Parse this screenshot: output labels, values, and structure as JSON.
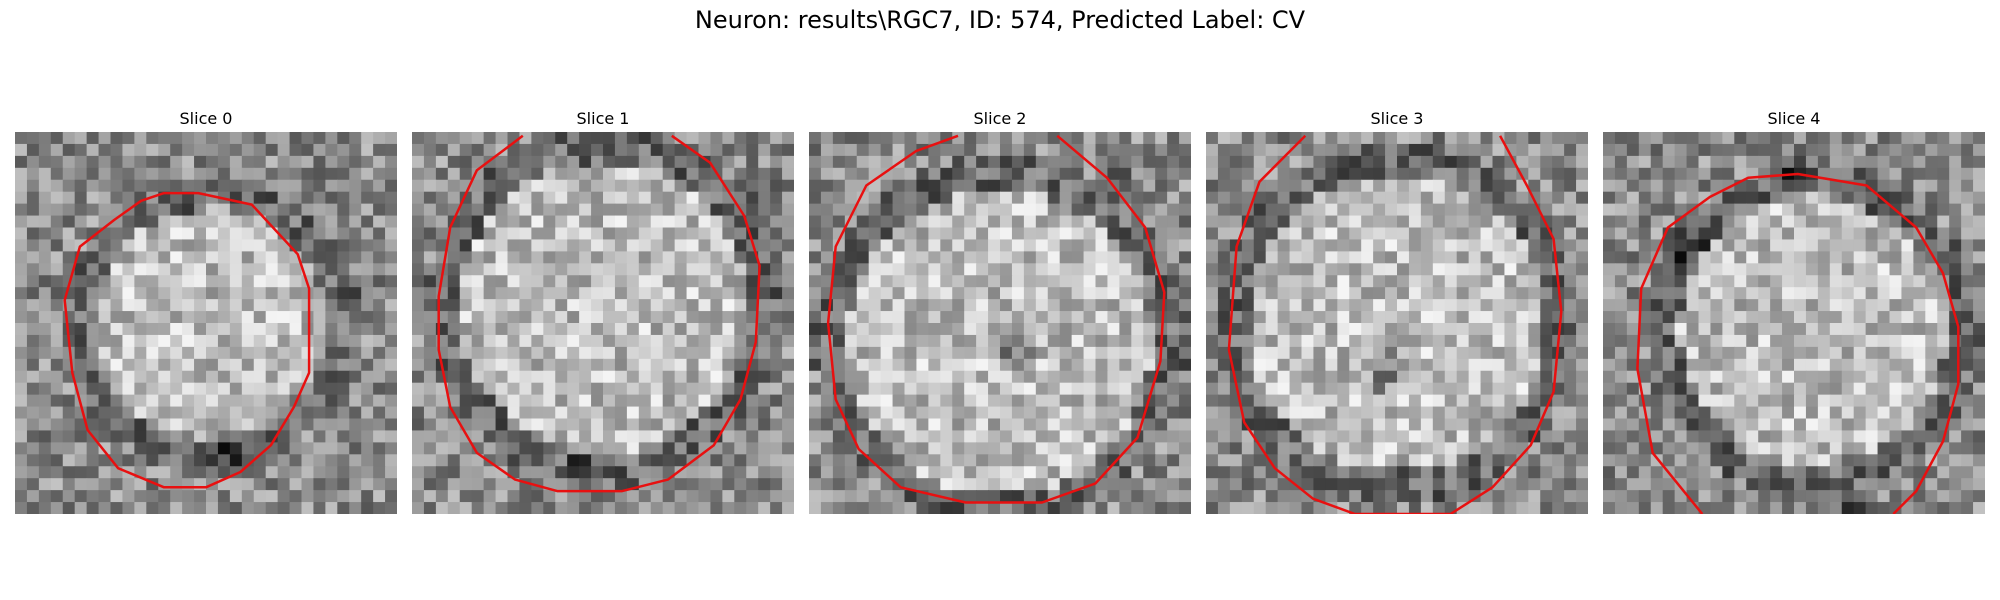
{
  "figure": {
    "title": "Neuron: results\\RGC7, ID: 574, Predicted Label: CV"
  },
  "panels": [
    {
      "title": "Slice 0",
      "seed": 11,
      "center": [
        0.51,
        0.5
      ],
      "radius": 0.33,
      "dark_blobs": [
        [
          0.54,
          0.83,
          0.07
        ]
      ],
      "contour": [
        [
          0.39,
          0.16
        ],
        [
          0.48,
          0.16
        ],
        [
          0.62,
          0.19
        ],
        [
          0.74,
          0.32
        ],
        [
          0.77,
          0.41
        ],
        [
          0.77,
          0.63
        ],
        [
          0.73,
          0.72
        ],
        [
          0.67,
          0.82
        ],
        [
          0.59,
          0.89
        ],
        [
          0.5,
          0.93
        ],
        [
          0.39,
          0.93
        ],
        [
          0.27,
          0.88
        ],
        [
          0.19,
          0.78
        ],
        [
          0.15,
          0.63
        ],
        [
          0.13,
          0.44
        ],
        [
          0.17,
          0.3
        ],
        [
          0.26,
          0.23
        ],
        [
          0.33,
          0.18
        ]
      ]
    },
    {
      "title": "Slice 1",
      "seed": 23,
      "center": [
        0.5,
        0.46
      ],
      "radius": 0.41,
      "dark_blobs": [
        [
          0.44,
          0.88,
          0.05
        ],
        [
          0.9,
          0.14,
          0.06
        ]
      ],
      "contour": [
        [
          0.29,
          0.01
        ],
        [
          0.17,
          0.1
        ],
        [
          0.1,
          0.25
        ],
        [
          0.07,
          0.43
        ],
        [
          0.07,
          0.57
        ],
        [
          0.1,
          0.72
        ],
        [
          0.17,
          0.84
        ],
        [
          0.27,
          0.91
        ],
        [
          0.38,
          0.94
        ],
        [
          0.55,
          0.94
        ],
        [
          0.67,
          0.91
        ],
        [
          0.79,
          0.82
        ],
        [
          0.86,
          0.7
        ],
        [
          0.9,
          0.55
        ],
        [
          0.91,
          0.35
        ],
        [
          0.87,
          0.22
        ],
        [
          0.78,
          0.08
        ],
        [
          0.68,
          0.01
        ]
      ]
    },
    {
      "title": "Slice 2",
      "seed": 37,
      "center": [
        0.5,
        0.55
      ],
      "radius": 0.43,
      "dark_blobs": [
        [
          0.54,
          0.58,
          0.07
        ],
        [
          0.8,
          0.1,
          0.05
        ]
      ],
      "contour": [
        [
          0.39,
          0.01
        ],
        [
          0.28,
          0.05
        ],
        [
          0.15,
          0.14
        ],
        [
          0.07,
          0.3
        ],
        [
          0.05,
          0.5
        ],
        [
          0.07,
          0.7
        ],
        [
          0.13,
          0.83
        ],
        [
          0.24,
          0.93
        ],
        [
          0.41,
          0.97
        ],
        [
          0.61,
          0.97
        ],
        [
          0.75,
          0.92
        ],
        [
          0.86,
          0.8
        ],
        [
          0.92,
          0.6
        ],
        [
          0.93,
          0.42
        ],
        [
          0.88,
          0.25
        ],
        [
          0.78,
          0.12
        ],
        [
          0.65,
          0.01
        ]
      ]
    },
    {
      "title": "Slice 3",
      "seed": 41,
      "center": [
        0.5,
        0.5
      ],
      "radius": 0.42,
      "dark_blobs": [
        [
          0.47,
          0.62,
          0.09
        ]
      ],
      "contour": [
        [
          0.26,
          0.01
        ],
        [
          0.14,
          0.13
        ],
        [
          0.08,
          0.3
        ],
        [
          0.06,
          0.57
        ],
        [
          0.1,
          0.76
        ],
        [
          0.18,
          0.88
        ],
        [
          0.28,
          0.96
        ],
        [
          0.39,
          1.0
        ],
        [
          0.42,
          1.0
        ],
        [
          0.64,
          1.0
        ],
        [
          0.75,
          0.93
        ],
        [
          0.85,
          0.82
        ],
        [
          0.91,
          0.68
        ],
        [
          0.93,
          0.47
        ],
        [
          0.91,
          0.28
        ],
        [
          0.84,
          0.14
        ],
        [
          0.77,
          0.01
        ]
      ]
    },
    {
      "title": "Slice 4",
      "seed": 53,
      "center": [
        0.55,
        0.52
      ],
      "radius": 0.38,
      "dark_blobs": [
        [
          0.22,
          0.3,
          0.07
        ],
        [
          0.66,
          0.98,
          0.06
        ],
        [
          0.5,
          0.1,
          0.06
        ]
      ],
      "contour": [
        [
          0.26,
          1.0
        ],
        [
          0.13,
          0.84
        ],
        [
          0.09,
          0.62
        ],
        [
          0.1,
          0.41
        ],
        [
          0.17,
          0.25
        ],
        [
          0.28,
          0.17
        ],
        [
          0.38,
          0.12
        ],
        [
          0.51,
          0.11
        ],
        [
          0.69,
          0.14
        ],
        [
          0.82,
          0.25
        ],
        [
          0.89,
          0.37
        ],
        [
          0.93,
          0.51
        ],
        [
          0.93,
          0.66
        ],
        [
          0.89,
          0.81
        ],
        [
          0.82,
          0.94
        ],
        [
          0.76,
          1.0
        ]
      ]
    }
  ],
  "colors": {
    "contour": "#e81010",
    "background": "#ffffff"
  },
  "grid_size": 32
}
